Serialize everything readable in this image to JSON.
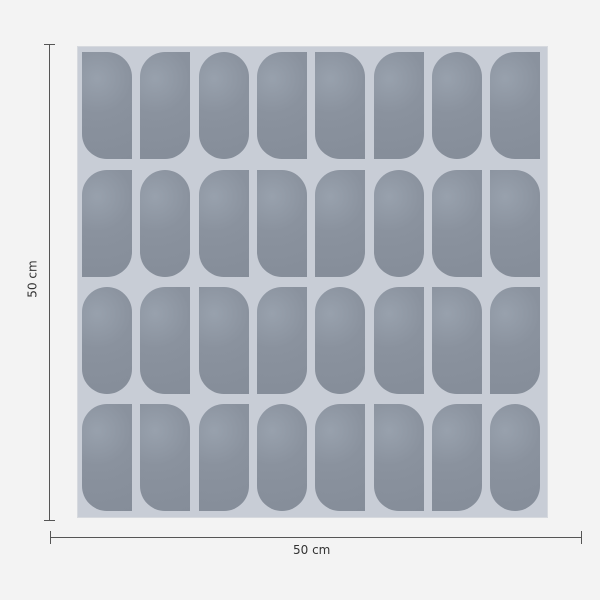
{
  "product": {
    "tile_color": "#c8cdd6",
    "piece_color": "#8a929e",
    "columns": 8,
    "rows": 4
  },
  "dimensions": {
    "height_label": "50 cm",
    "width_label": "50 cm"
  }
}
